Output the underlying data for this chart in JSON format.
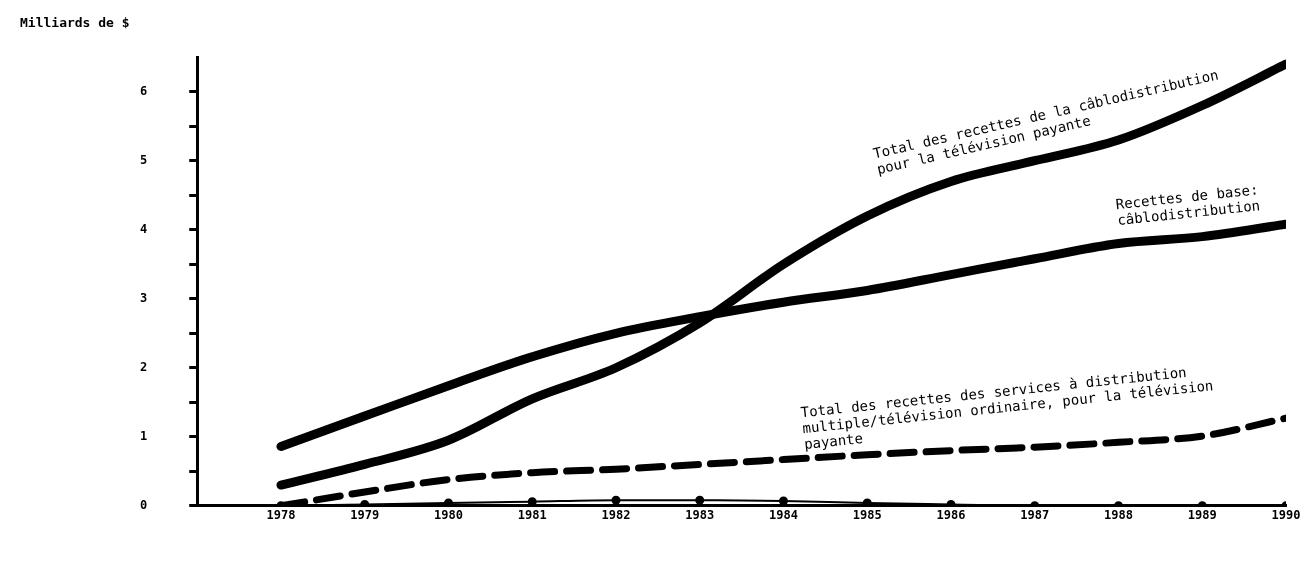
{
  "chart_data": {
    "type": "line",
    "ylabel": "Milliards de $",
    "xlim": [
      1977,
      1990
    ],
    "xticks": [
      1978,
      1979,
      1980,
      1981,
      1982,
      1983,
      1984,
      1985,
      1986,
      1987,
      1988,
      1989,
      1990
    ],
    "ylim": [
      0,
      6.5
    ],
    "yticks": [
      0,
      {
        "value": 0.5,
        "label": null
      },
      1,
      {
        "value": 1.5,
        "label": null
      },
      2,
      {
        "value": 2.5,
        "label": null
      },
      3,
      {
        "value": 3.5,
        "label": null
      },
      4,
      {
        "value": 4.5,
        "label": null
      },
      5,
      {
        "value": 5.5,
        "label": null
      },
      6
    ],
    "grid": false,
    "legend": false,
    "x": [
      1978,
      1979,
      1980,
      1981,
      1982,
      1983,
      1984,
      1985,
      1986,
      1987,
      1988,
      1989,
      1990
    ],
    "series": [
      {
        "name": "Total des recettes de la câblodistribution pour la télévision payante",
        "color": "#000000",
        "line_style": "solid",
        "marker": "none",
        "values": [
          0.3,
          0.6,
          0.95,
          1.55,
          2.0,
          2.65,
          3.5,
          4.2,
          4.7,
          5.0,
          5.3,
          5.8,
          6.4
        ]
      },
      {
        "name": "Recettes de base: câblodistribution",
        "color": "#000000",
        "line_style": "solid",
        "marker": "none",
        "values": [
          0.86,
          1.3,
          1.74,
          2.16,
          2.5,
          2.74,
          2.95,
          3.12,
          3.35,
          3.58,
          3.8,
          3.9,
          4.08
        ]
      },
      {
        "name": "Total des recettes des services à distribution multiple/télévision ordinaire, pour la télévision payante",
        "color": "#000000",
        "line_style": "dashed",
        "marker": "none",
        "values": [
          0.0,
          0.2,
          0.38,
          0.48,
          0.53,
          0.6,
          0.67,
          0.74,
          0.8,
          0.85,
          0.92,
          1.01,
          1.27
        ]
      },
      {
        "color": "#000000",
        "line_style": "solid",
        "marker": "circle",
        "values": [
          0,
          0.02,
          0.04,
          0.06,
          0.08,
          0.08,
          0.07,
          0.04,
          0.02,
          0,
          0,
          0,
          0
        ]
      }
    ]
  }
}
